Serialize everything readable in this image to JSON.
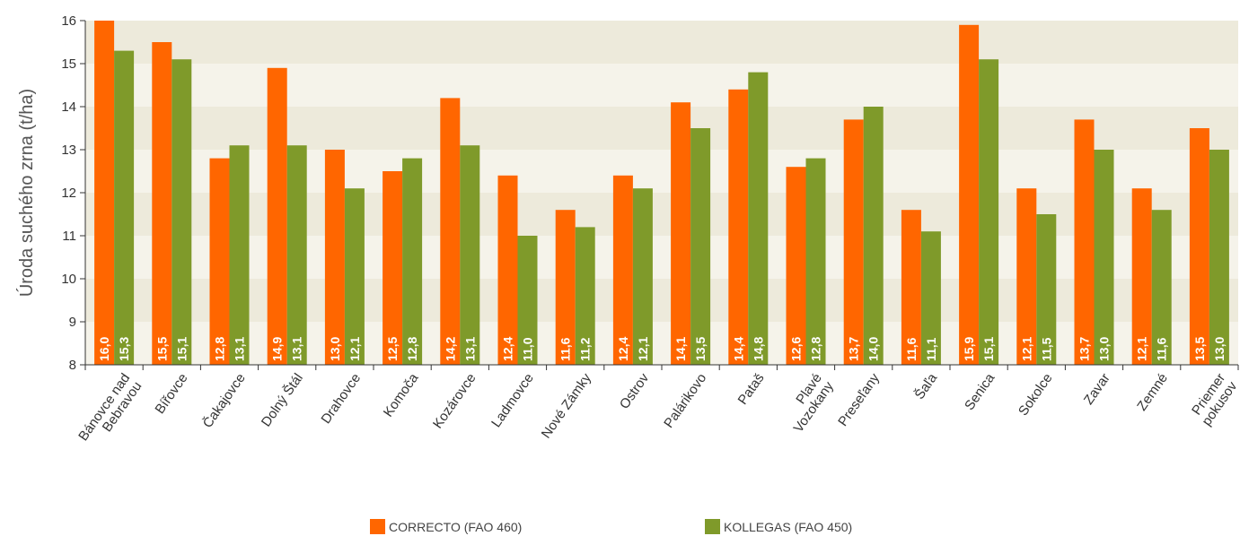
{
  "chart_data": {
    "type": "bar",
    "ylabel": "Úroda suchého zrna (t/ha)",
    "ylim": [
      8,
      16
    ],
    "yticks": [
      8,
      9,
      10,
      11,
      12,
      13,
      14,
      15,
      16
    ],
    "grid": "alternating horizontal bands",
    "legend_position": "bottom",
    "categories": [
      [
        "Bánovce nad",
        "Bebravou"
      ],
      [
        "Bířovce"
      ],
      [
        "Čakajovce"
      ],
      [
        "Dolný Štál"
      ],
      [
        "Drahovce"
      ],
      [
        "Komoča"
      ],
      [
        "Kozárovce"
      ],
      [
        "Ladmovce"
      ],
      [
        "Nové Zámky"
      ],
      [
        "Ostrov"
      ],
      [
        "Palárikovo"
      ],
      [
        "Pataš"
      ],
      [
        "Plavé",
        "Vozokany"
      ],
      [
        "Preseľany"
      ],
      [
        "Šaľa"
      ],
      [
        "Senica"
      ],
      [
        "Sokolce"
      ],
      [
        "Zavar"
      ],
      [
        "Zemné"
      ],
      [
        "Priemer",
        "pokusov"
      ]
    ],
    "series": [
      {
        "name": "CORRECTO (FAO 460)",
        "color": "#ff6600",
        "values": [
          16.0,
          15.5,
          12.8,
          14.9,
          13.0,
          12.5,
          14.2,
          12.4,
          11.6,
          12.4,
          14.1,
          14.4,
          12.6,
          13.7,
          11.6,
          15.9,
          12.1,
          13.7,
          12.1,
          13.5
        ],
        "labels": [
          "16,0",
          "15,5",
          "12,8",
          "14,9",
          "13,0",
          "12,5",
          "14,2",
          "12,4",
          "11,6",
          "12,4",
          "14,1",
          "14,4",
          "12,6",
          "13,7",
          "11,6",
          "15,9",
          "12,1",
          "13,7",
          "12,1",
          "13,5"
        ]
      },
      {
        "name": "KOLLEGAS (FAO 450)",
        "color": "#7f9a2a",
        "values": [
          15.3,
          15.1,
          13.1,
          13.1,
          12.1,
          12.8,
          13.1,
          11.0,
          11.2,
          12.1,
          13.5,
          14.8,
          12.8,
          14.0,
          11.1,
          15.1,
          11.5,
          13.0,
          11.6,
          13.0
        ],
        "labels": [
          "15,3",
          "15,1",
          "13,1",
          "13,1",
          "12,1",
          "12,8",
          "13,1",
          "11,0",
          "11,2",
          "12,1",
          "13,5",
          "14,8",
          "12,8",
          "14,0",
          "11,1",
          "15,1",
          "11,5",
          "13,0",
          "11,6",
          "13,0"
        ]
      }
    ]
  }
}
